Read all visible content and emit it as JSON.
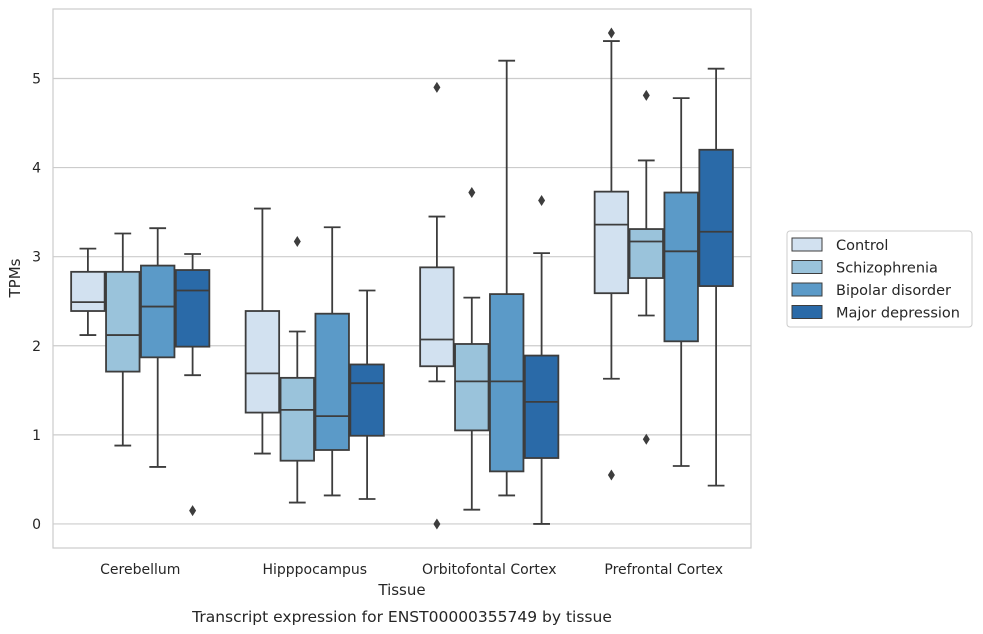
{
  "chart_data": {
    "type": "box",
    "xlabel": "Tissue",
    "ylabel": "TPMs",
    "caption": "Transcript expression for ENST00000355749 by tissue",
    "ylim": [
      -0.27,
      5.78
    ],
    "yticks": [
      0,
      1,
      2,
      3,
      4,
      5
    ],
    "grid": "horizontal",
    "legend_position": "right",
    "categories": [
      "Cerebellum",
      "Hipppocampus",
      "Orbitofontal Cortex",
      "Prefrontal Cortex"
    ],
    "series": [
      {
        "name": "Control",
        "color": "#d2e1f0",
        "boxes": [
          {
            "whislo": 2.12,
            "q1": 2.39,
            "med": 2.49,
            "q3": 2.83,
            "whishi": 3.09,
            "fliers": []
          },
          {
            "whislo": 0.79,
            "q1": 1.25,
            "med": 1.69,
            "q3": 2.39,
            "whishi": 3.54,
            "fliers": []
          },
          {
            "whislo": 1.6,
            "q1": 1.77,
            "med": 2.07,
            "q3": 2.88,
            "whishi": 3.45,
            "fliers": [
              4.9,
              0.0
            ]
          },
          {
            "whislo": 1.63,
            "q1": 2.59,
            "med": 3.36,
            "q3": 3.73,
            "whishi": 5.42,
            "fliers": [
              5.51,
              0.55
            ]
          }
        ]
      },
      {
        "name": "Schizophrenia",
        "color": "#9ac3db",
        "boxes": [
          {
            "whislo": 0.88,
            "q1": 1.71,
            "med": 2.12,
            "q3": 2.83,
            "whishi": 3.26,
            "fliers": []
          },
          {
            "whislo": 0.24,
            "q1": 0.71,
            "med": 1.28,
            "q3": 1.64,
            "whishi": 2.16,
            "fliers": [
              3.17
            ]
          },
          {
            "whislo": 0.16,
            "q1": 1.05,
            "med": 1.6,
            "q3": 2.02,
            "whishi": 2.54,
            "fliers": [
              3.72
            ]
          },
          {
            "whislo": 2.34,
            "q1": 2.76,
            "med": 3.17,
            "q3": 3.31,
            "whishi": 4.08,
            "fliers": [
              4.81,
              0.95
            ]
          }
        ]
      },
      {
        "name": "Bipolar disorder",
        "color": "#5b9ac8",
        "boxes": [
          {
            "whislo": 0.64,
            "q1": 1.87,
            "med": 2.44,
            "q3": 2.9,
            "whishi": 3.32,
            "fliers": []
          },
          {
            "whislo": 0.32,
            "q1": 0.83,
            "med": 1.21,
            "q3": 2.36,
            "whishi": 3.33,
            "fliers": []
          },
          {
            "whislo": 0.32,
            "q1": 0.59,
            "med": 1.6,
            "q3": 2.58,
            "whishi": 5.2,
            "fliers": []
          },
          {
            "whislo": 0.65,
            "q1": 2.05,
            "med": 3.06,
            "q3": 3.72,
            "whishi": 4.78,
            "fliers": []
          }
        ]
      },
      {
        "name": "Major depression",
        "color": "#2a6aa8",
        "boxes": [
          {
            "whislo": 1.67,
            "q1": 1.99,
            "med": 2.62,
            "q3": 2.85,
            "whishi": 3.03,
            "fliers": [
              0.15
            ]
          },
          {
            "whislo": 0.28,
            "q1": 0.99,
            "med": 1.58,
            "q3": 1.79,
            "whishi": 2.62,
            "fliers": []
          },
          {
            "whislo": 0.0,
            "q1": 0.74,
            "med": 1.37,
            "q3": 1.89,
            "whishi": 3.04,
            "fliers": [
              3.63
            ]
          },
          {
            "whislo": 0.43,
            "q1": 2.67,
            "med": 3.28,
            "q3": 4.2,
            "whishi": 5.11,
            "fliers": []
          }
        ]
      }
    ]
  }
}
